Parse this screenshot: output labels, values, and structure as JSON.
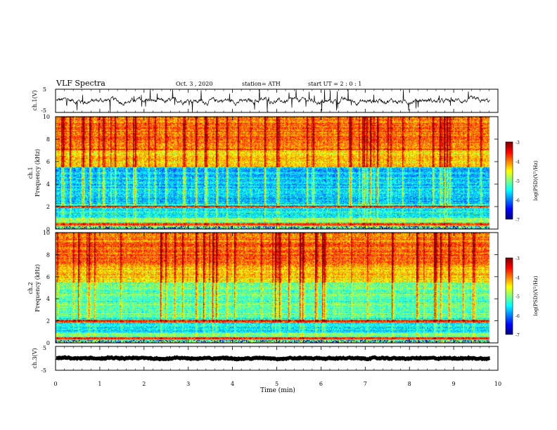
{
  "header": {
    "title": "VLF Spectra",
    "date": "Oct. 3 , 2020",
    "station": "station= ATH",
    "start": "start UT = 2 : 0 : 1"
  },
  "chart_data": [
    {
      "type": "line",
      "ylabel": "ch.1(V)",
      "ylim": [
        -5,
        5
      ],
      "yticks": [
        "5",
        "-5"
      ],
      "xlim": [
        0,
        10
      ],
      "noise_amplitude_v": 1.2,
      "baseline_v": 0
    },
    {
      "type": "heatmap",
      "ylabel_line1": "ch.1",
      "ylabel_line2": "Frequency (kHz)",
      "ylim": [
        0,
        10
      ],
      "yticks": [
        "0",
        "2",
        "4",
        "6",
        "8",
        "10"
      ],
      "xlim": [
        0,
        9.8
      ],
      "colorbar": {
        "label": "log(PSD)(V²/Hz)",
        "range": [
          -7,
          -3
        ],
        "ticks": [
          "-3",
          "-4",
          "-5",
          "-6",
          "-7"
        ]
      }
    },
    {
      "type": "heatmap",
      "ylabel_line1": "ch.2",
      "ylabel_line2": "Frequency (kHz)",
      "ylim": [
        0,
        10
      ],
      "yticks": [
        "0",
        "2",
        "4",
        "6",
        "8",
        "10"
      ],
      "xlim": [
        0,
        9.8
      ],
      "colorbar": {
        "label": "log(PSD)(V²/Hz)",
        "range": [
          -7,
          -3
        ],
        "ticks": [
          "-3",
          "-4",
          "-5",
          "-6",
          "-7"
        ]
      }
    },
    {
      "type": "line",
      "ylabel": "ch.3(V)",
      "ylim": [
        -5,
        5
      ],
      "yticks": [
        "5",
        "-5"
      ],
      "xlim": [
        0,
        10
      ],
      "noise_amplitude_v": 0.3,
      "baseline_v": 0
    }
  ],
  "xaxis": {
    "label": "Time (min)",
    "ticks": [
      "0",
      "1",
      "2",
      "3",
      "4",
      "5",
      "6",
      "7",
      "8",
      "9",
      "10"
    ]
  }
}
